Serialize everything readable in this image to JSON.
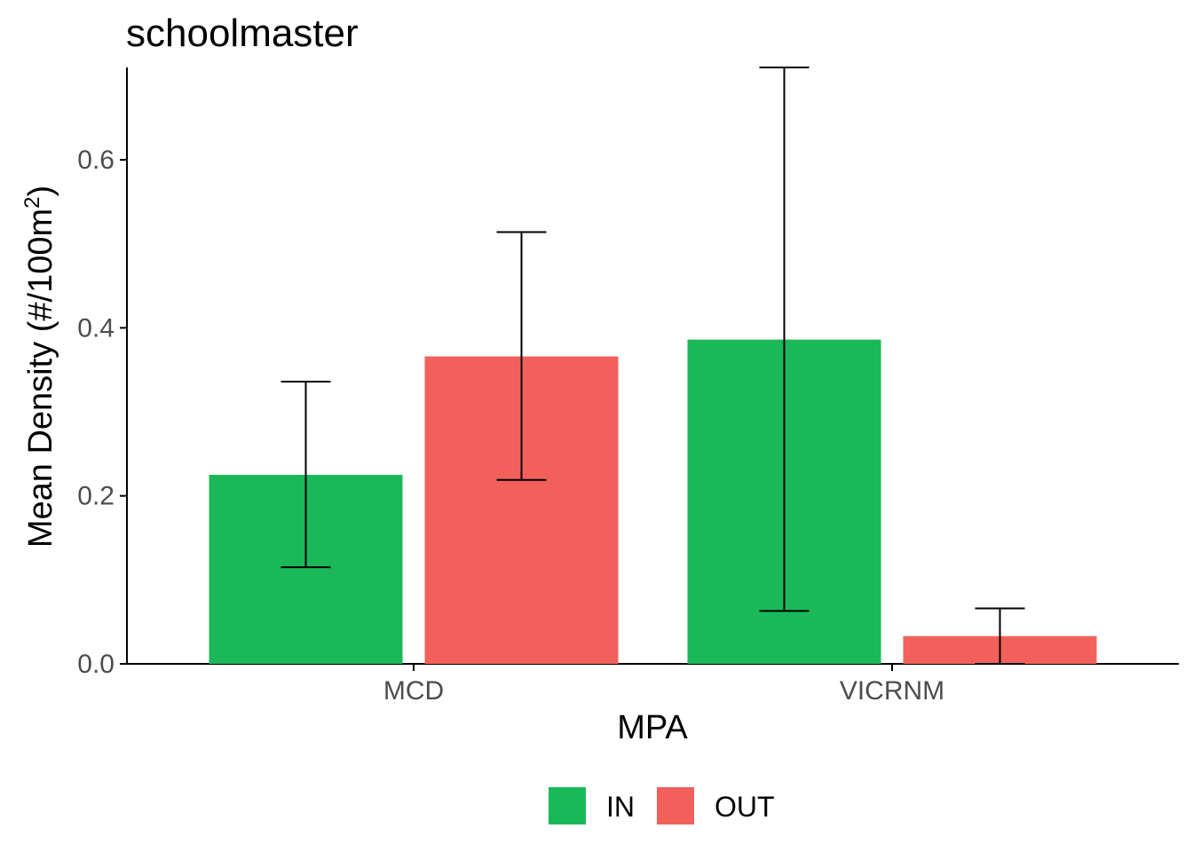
{
  "chart_data": {
    "type": "bar",
    "title": "schoolmaster",
    "xlabel": "MPA",
    "ylabel": "Mean Density (#/100m",
    "ylabel_superscript": "2",
    "ylabel_close": ")",
    "categories": [
      "MCD",
      "VICRNM"
    ],
    "series": [
      {
        "name": "IN",
        "color": "#1BB85A",
        "values": [
          0.225,
          0.386
        ],
        "err_low": [
          0.115,
          0.063
        ],
        "err_high": [
          0.336,
          0.71
        ]
      },
      {
        "name": "OUT",
        "color": "#F2605C",
        "values": [
          0.366,
          0.033
        ],
        "err_low": [
          0.219,
          0.0
        ],
        "err_high": [
          0.514,
          0.066
        ]
      }
    ],
    "ylim": [
      0,
      0.71
    ],
    "yticks": [
      0.0,
      0.2,
      0.4,
      0.6
    ],
    "ytick_labels": [
      "0.0",
      "0.2",
      "0.4",
      "0.6"
    ],
    "grid": false,
    "legend_position": "bottom"
  }
}
